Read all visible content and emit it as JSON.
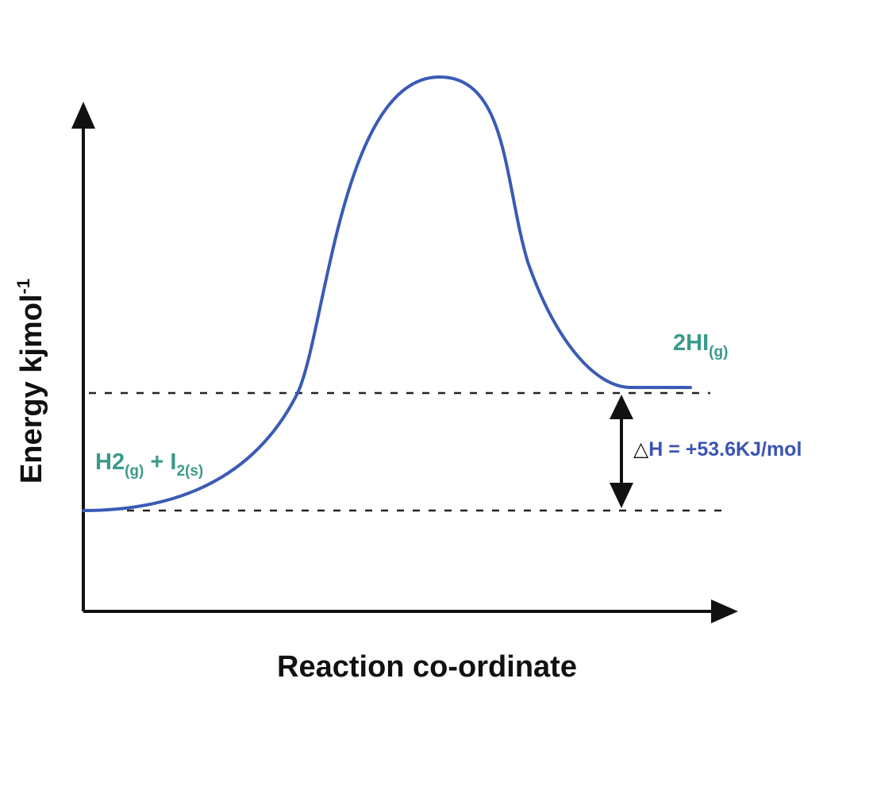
{
  "diagram": {
    "y_axis": {
      "label": "Energy kjmol",
      "superscript": "-1"
    },
    "x_axis": {
      "label": "Reaction co-ordinate"
    },
    "reactants": {
      "main": "H2",
      "state1": "(g)",
      "plus": " + I",
      "sub2": "2(s)"
    },
    "products": {
      "main": "2HI",
      "state": "(g)"
    },
    "enthalpy_change": {
      "symbol": "△",
      "text": "H = +53.6KJ/mol"
    },
    "colors": {
      "curve": "#3a5bb5",
      "species_label": "#3a9a8a",
      "enthalpy_label": "#3c54b4",
      "axes": "#111111",
      "dashed_level": "#222222"
    }
  }
}
